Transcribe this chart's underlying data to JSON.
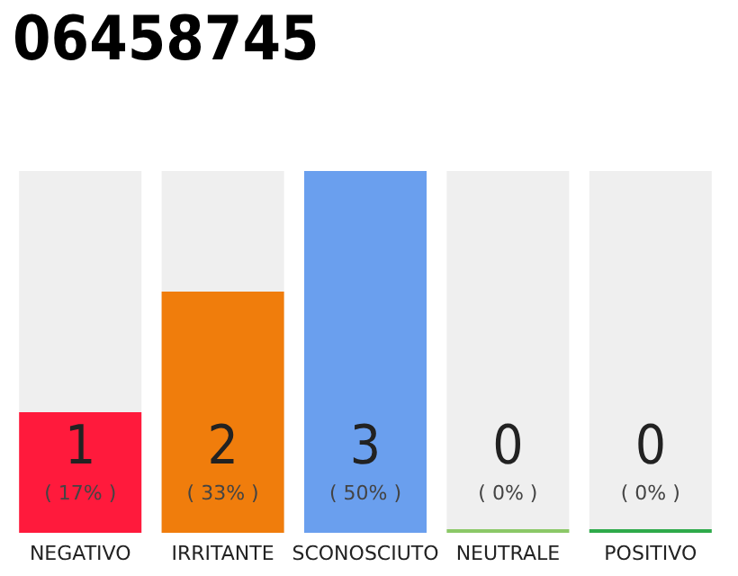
{
  "chart_data": {
    "type": "bar",
    "title": "06458745",
    "categories": [
      "NEGATIVO",
      "IRRITANTE",
      "SCONOSCIUTO",
      "NEUTRALE",
      "POSITIVO"
    ],
    "values": [
      1,
      2,
      3,
      0,
      0
    ],
    "colors": [
      "#ff1a3c",
      "#f07d0c",
      "#6a9fee",
      "#8bc867",
      "#2eaa4a"
    ],
    "value_labels": [
      "1\n( 17% )",
      "2\n( 33% )",
      "3\n( 50% )",
      "0\n( 0% )",
      "0\n( 0% )"
    ],
    "ylim": [
      0,
      3
    ]
  }
}
